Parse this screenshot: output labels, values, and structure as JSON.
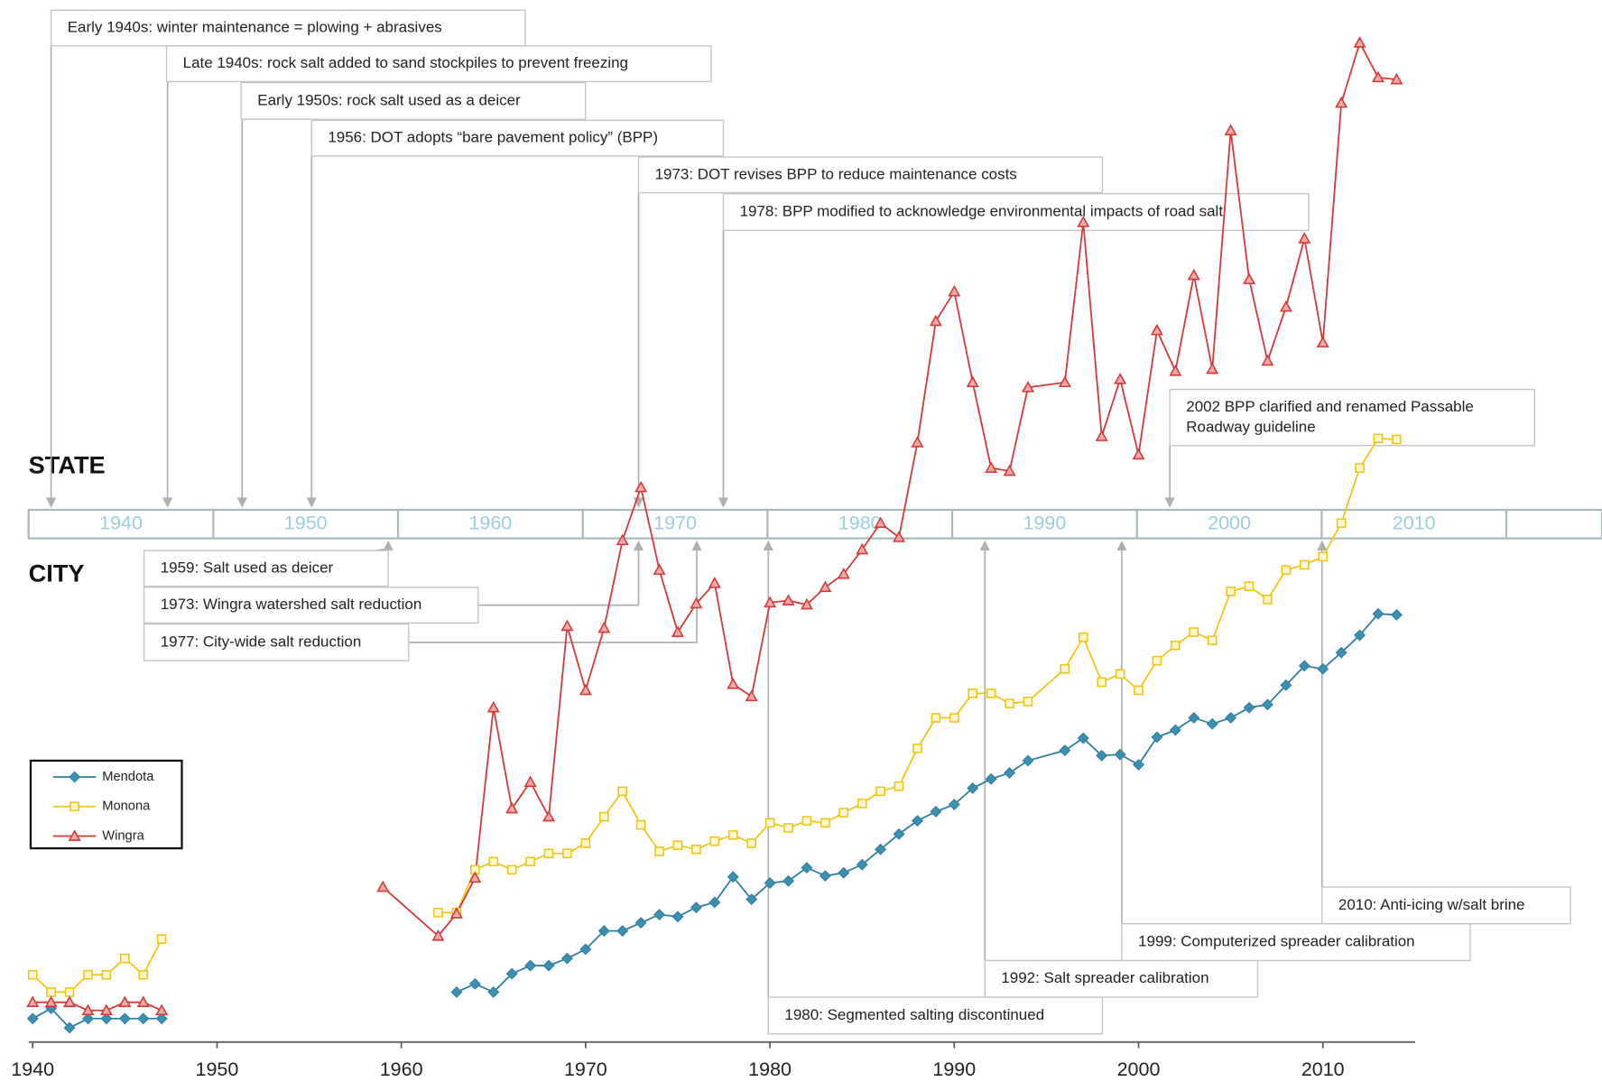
{
  "chart_data": {
    "type": "line",
    "x": [
      1940,
      1941,
      1942,
      1943,
      1944,
      1945,
      1946,
      1947,
      1948,
      1949,
      1950,
      1951,
      1952,
      1953,
      1954,
      1955,
      1956,
      1957,
      1958,
      1959,
      1962,
      1963,
      1964,
      1965,
      1966,
      1967,
      1968,
      1969,
      1970,
      1971,
      1972,
      1973,
      1974,
      1975,
      1976,
      1977,
      1978,
      1979,
      1980,
      1981,
      1982,
      1983,
      1984,
      1985,
      1986,
      1987,
      1988,
      1989,
      1990,
      1991,
      1992,
      1993,
      1994,
      1996,
      1997,
      1998,
      1999,
      2000,
      2001,
      2002,
      2003,
      2004,
      2005,
      2006,
      2007,
      2008,
      2009,
      2010,
      2011,
      2012,
      2013,
      2014
    ],
    "xlim": [
      1940,
      2015
    ],
    "xticks": [
      1940,
      1950,
      1960,
      1970,
      1980,
      1990,
      2000,
      2010
    ],
    "ylim": [
      0,
      100
    ],
    "legend": "lower-left",
    "series": [
      {
        "name": "Mendota",
        "color": "#2f7f9e",
        "marker": "diamond",
        "values": [
          2.3,
          3.3,
          1.4,
          2.3,
          2.3,
          2.3,
          2.3,
          2.3,
          null,
          null,
          null,
          null,
          null,
          null,
          null,
          null,
          null,
          null,
          null,
          null,
          null,
          4.9,
          5.7,
          4.9,
          6.7,
          7.5,
          7.5,
          8.2,
          9.1,
          10.9,
          10.9,
          11.7,
          12.5,
          12.3,
          13.2,
          13.7,
          16.2,
          14.0,
          15.6,
          15.8,
          17.1,
          16.3,
          16.6,
          17.4,
          18.9,
          20.4,
          21.7,
          22.6,
          23.3,
          24.9,
          25.8,
          26.4,
          27.6,
          28.6,
          29.8,
          28.1,
          28.2,
          27.2,
          29.9,
          30.6,
          31.8,
          31.2,
          31.8,
          32.8,
          33.1,
          35.0,
          36.9,
          36.6,
          38.2,
          39.9,
          42.0,
          41.9
        ]
      },
      {
        "name": "Monona",
        "color": "#f0c419",
        "marker": "square",
        "values": [
          6.6,
          4.9,
          4.9,
          6.6,
          6.6,
          8.2,
          6.6,
          10.1,
          null,
          null,
          null,
          null,
          null,
          null,
          null,
          null,
          null,
          null,
          null,
          null,
          12.7,
          12.7,
          16.9,
          17.7,
          16.9,
          17.7,
          18.5,
          18.5,
          19.5,
          22.1,
          24.6,
          21.3,
          18.7,
          19.3,
          18.9,
          19.7,
          20.3,
          19.5,
          21.5,
          21.0,
          21.7,
          21.5,
          22.5,
          23.4,
          24.6,
          25.1,
          28.8,
          31.8,
          31.8,
          34.2,
          34.2,
          33.2,
          33.4,
          36.6,
          39.7,
          35.3,
          36.1,
          34.5,
          37.4,
          38.9,
          40.2,
          39.4,
          44.2,
          44.7,
          43.4,
          46.3,
          46.8,
          47.6,
          50.9,
          56.3,
          59.2,
          59.1
        ]
      },
      {
        "name": "Wingra",
        "color": "#d43a3a",
        "marker": "triangle",
        "values": [
          3.9,
          3.9,
          3.9,
          3.1,
          3.1,
          3.9,
          3.9,
          3.1,
          null,
          null,
          null,
          null,
          null,
          null,
          null,
          null,
          null,
          null,
          null,
          15.2,
          10.4,
          12.6,
          16.1,
          32.8,
          22.9,
          25.5,
          22.1,
          40.8,
          34.5,
          40.6,
          49.2,
          54.4,
          46.3,
          40.2,
          43.0,
          45.0,
          35.1,
          33.9,
          43.1,
          43.3,
          42.9,
          44.6,
          45.9,
          48.3,
          50.9,
          49.5,
          58.8,
          70.7,
          73.6,
          64.7,
          56.3,
          56.0,
          64.2,
          64.7,
          80.4,
          59.4,
          65.0,
          57.6,
          69.8,
          65.8,
          75.2,
          66.0,
          89.4,
          74.8,
          66.8,
          72.1,
          78.8,
          68.6,
          92.1,
          98.0,
          94.6,
          94.4
        ]
      }
    ]
  },
  "timeline": {
    "state_label": "STATE",
    "city_label": "CITY",
    "decades": [
      "1940",
      "1950",
      "1960",
      "1970",
      "1980",
      "1990",
      "2000",
      "2010"
    ],
    "state_events": [
      {
        "lines": [
          "Early 1940s: winter maintenance = plowing + abrasives"
        ]
      },
      {
        "lines": [
          "Late 1940s: rock salt added to sand stockpiles to prevent freezing"
        ]
      },
      {
        "lines": [
          "Early 1950s: rock salt used as a deicer"
        ]
      },
      {
        "lines": [
          "1956: DOT adopts “bare pavement policy” (BPP)"
        ]
      },
      {
        "lines": [
          "1973: DOT revises BPP to reduce maintenance costs"
        ]
      },
      {
        "lines": [
          "1978: BPP modified to acknowledge environmental impacts of road salt"
        ]
      },
      {
        "lines": [
          "2002 BPP clarified and renamed Passable",
          "Roadway guideline"
        ]
      }
    ],
    "city_events": [
      {
        "lines": [
          "1959: Salt used as deicer"
        ]
      },
      {
        "lines": [
          "1973: Wingra watershed salt reduction"
        ]
      },
      {
        "lines": [
          "1977: City-wide salt reduction"
        ]
      },
      {
        "lines": [
          "1980: Segmented salting discontinued"
        ]
      },
      {
        "lines": [
          "1992: Salt spreader calibration"
        ]
      },
      {
        "lines": [
          "1999: Computerized spreader calibration"
        ]
      },
      {
        "lines": [
          "2010: Anti-icing w/salt brine"
        ]
      }
    ]
  }
}
